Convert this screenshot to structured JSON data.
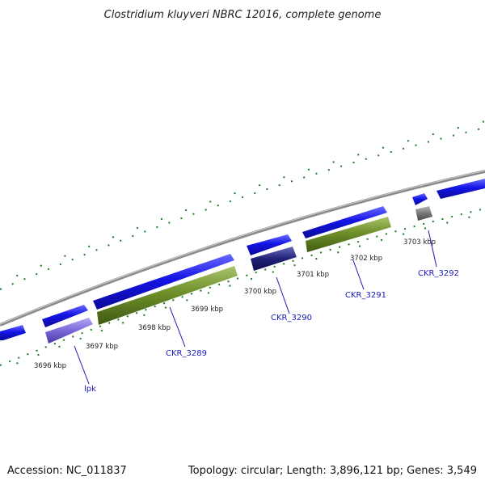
{
  "title": "Clostridium kluyveri NBRC 12016, complete genome",
  "accession": "Accession: NC_011837",
  "summary": "Topology: circular; Length: 3,896,121 bp; Genes: 3,549",
  "kbp_labels": [
    "3696 kbp",
    "3697 kbp",
    "3698 kbp",
    "3699 kbp",
    "3700 kbp",
    "3701 kbp",
    "3702 kbp",
    "3703 kbp"
  ],
  "gene_labels": [
    "lpk",
    "CKR_3289",
    "CKR_3290",
    "CKR_3291",
    "CKR_3292"
  ],
  "colors": {
    "cds": "#1010e0",
    "cds_dark": "#0a0a80",
    "gene_green": "#6b8e23",
    "gene_purple": "#7b68d8",
    "gene_dark_blue": "#1a1a7a",
    "gene_gray": "#6e6e6e",
    "backbone": "#8c8c8c",
    "tick": "#1e7a1e",
    "label": "#1a1ab8"
  }
}
